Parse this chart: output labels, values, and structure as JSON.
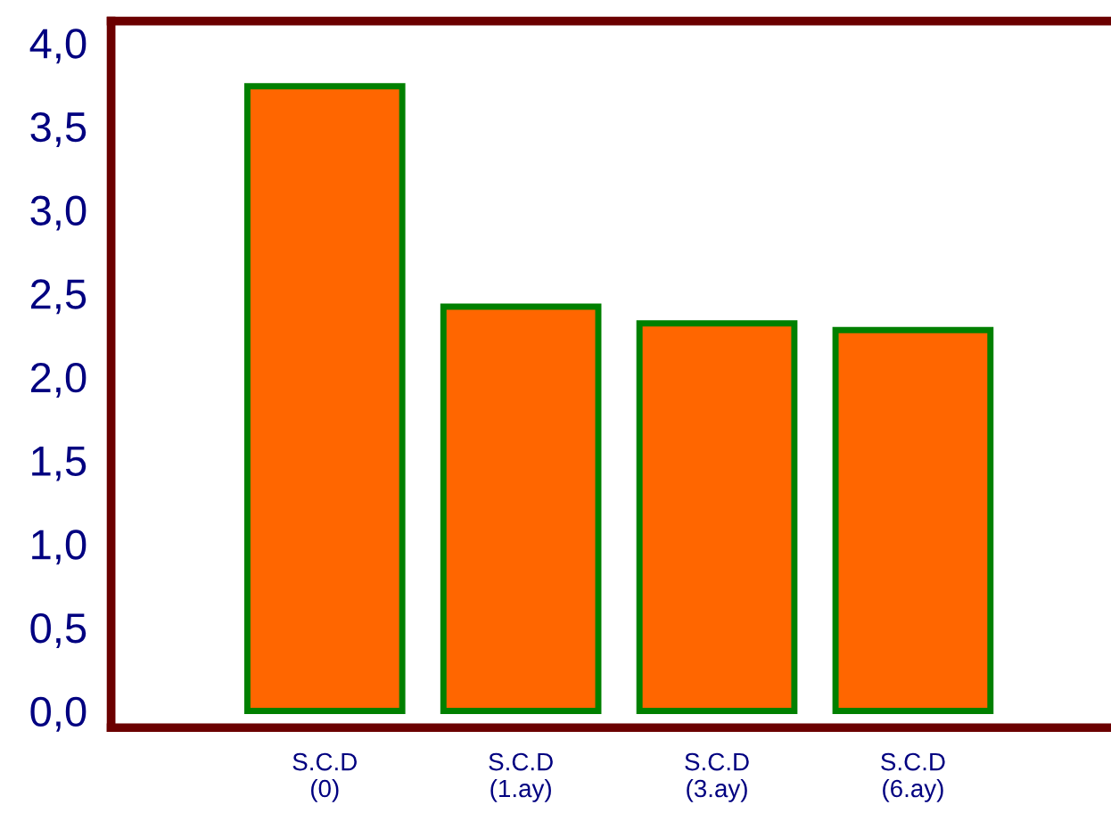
{
  "chart_data": {
    "type": "bar",
    "categories": [
      "S.C.D\n(0)",
      "S.C.D\n(1.ay)",
      "S.C.D\n(3.ay)",
      "S.C.D\n(6.ay)"
    ],
    "values": [
      3.74,
      2.42,
      2.32,
      2.28
    ],
    "color": "#ff6600",
    "ylim": [
      -0.1,
      4.13
    ],
    "yticks": [
      {
        "value": 0,
        "label": "0,0"
      },
      {
        "value": 0.5,
        "label": "0,5"
      },
      {
        "value": 1,
        "label": "1,0"
      },
      {
        "value": 1.5,
        "label": "1,5"
      },
      {
        "value": 2,
        "label": "2,0"
      },
      {
        "value": 2.5,
        "label": "2,5"
      },
      {
        "value": 3,
        "label": "3,0"
      },
      {
        "value": 3.5,
        "label": "3,5"
      },
      {
        "value": 4,
        "label": "4,0"
      }
    ],
    "grid": false,
    "legend": false
  }
}
